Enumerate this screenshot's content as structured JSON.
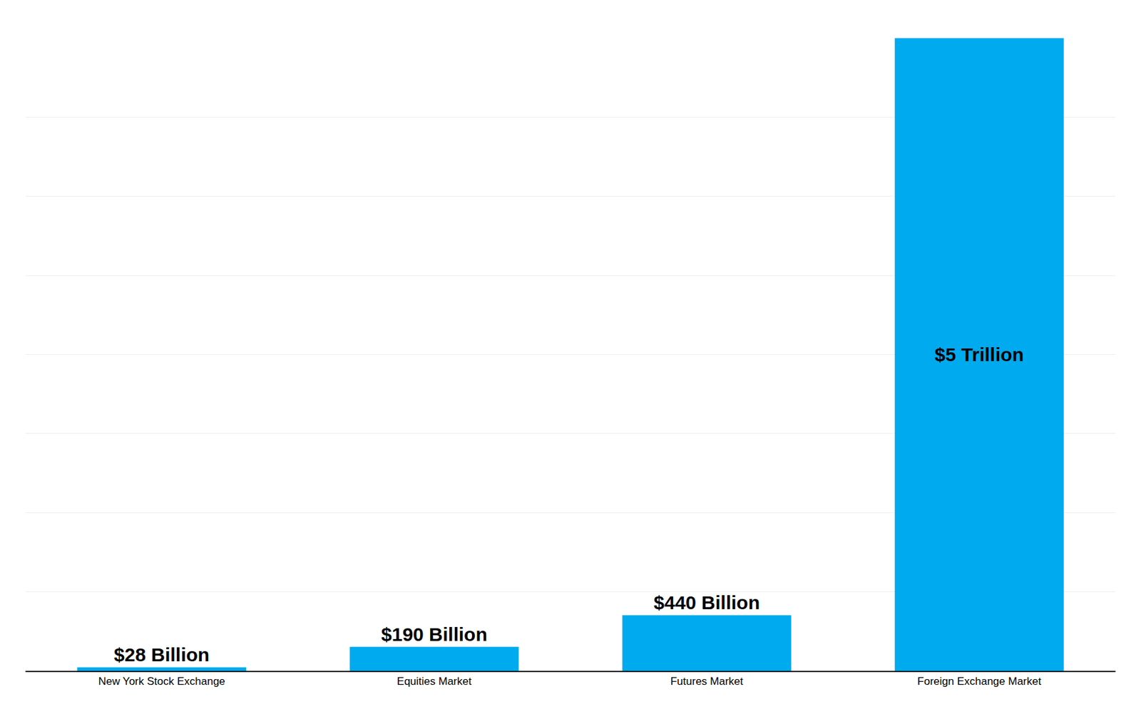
{
  "chart_data": {
    "type": "bar",
    "categories": [
      "New York Stock Exchange",
      "Equities Market",
      "Futures Market",
      "Foreign Exchange Market"
    ],
    "values": [
      28,
      190,
      440,
      5000
    ],
    "value_labels": [
      "$28 Billion",
      "$190 Billion",
      "$440 Billion",
      "$5 Trillion"
    ],
    "color": "#00AAEE",
    "ylim": [
      0,
      5000
    ],
    "yticks": [
      0,
      625,
      1250,
      1875,
      2500,
      3125,
      3750,
      4375,
      5000
    ],
    "grid": true,
    "data_labels": true,
    "tick_labels": "x"
  }
}
